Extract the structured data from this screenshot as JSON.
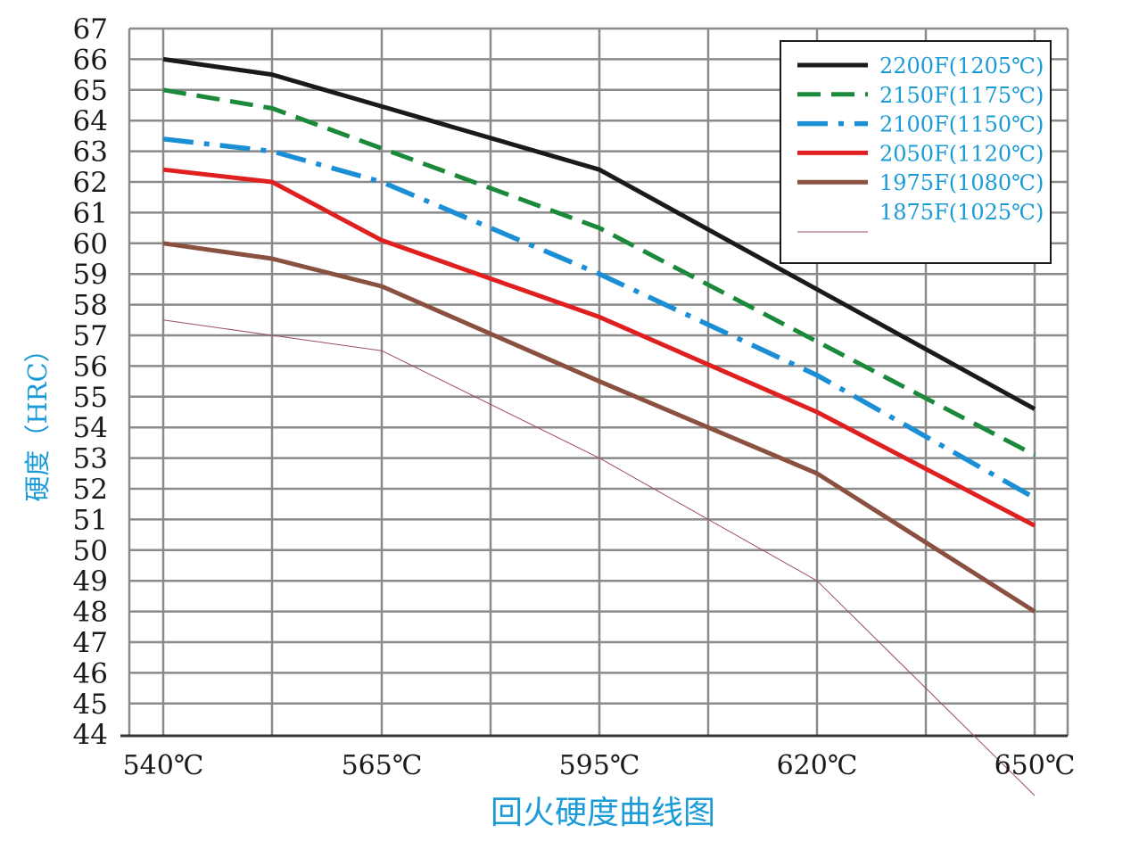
{
  "chart_data": {
    "type": "line",
    "title": "",
    "xlabel": "回火硬度曲线图",
    "ylabel": "硬度（HRC）",
    "x": [
      540,
      550,
      565,
      580,
      595,
      605,
      620,
      635,
      650
    ],
    "x_tick_labels": [
      "540℃",
      "565℃",
      "595℃",
      "620℃",
      "650℃"
    ],
    "x_tick_values": [
      540,
      565,
      595,
      620,
      650
    ],
    "ylim": [
      44,
      67
    ],
    "y_tick_labels": [
      "67",
      "66",
      "65",
      "64",
      "63",
      "62",
      "61",
      "60",
      "59",
      "58",
      "57",
      "56",
      "55",
      "54",
      "53",
      "52",
      "51",
      "50",
      "49",
      "48",
      "47",
      "46",
      "45",
      "44"
    ],
    "grid": true,
    "legend_position": "top-right",
    "series": [
      {
        "name": "2200F(1205℃)",
        "color": "#1a1a1a",
        "style": "solid",
        "points": [
          [
            540,
            66.0
          ],
          [
            550,
            65.5
          ],
          [
            595,
            62.4
          ],
          [
            650,
            54.6
          ]
        ]
      },
      {
        "name": "2150F(1175℃)",
        "color": "#1a8a3a",
        "style": "dashed",
        "points": [
          [
            540,
            65.0
          ],
          [
            550,
            64.4
          ],
          [
            595,
            60.5
          ],
          [
            650,
            53.1
          ]
        ]
      },
      {
        "name": "2100F(1150℃)",
        "color": "#1a8fd5",
        "style": "dashdot",
        "points": [
          [
            540,
            63.4
          ],
          [
            550,
            63.0
          ],
          [
            565,
            62.0
          ],
          [
            595,
            59.0
          ],
          [
            620,
            55.7
          ],
          [
            650,
            51.7
          ]
        ]
      },
      {
        "name": "2050F(1120℃)",
        "color": "#e02020",
        "style": "solid",
        "points": [
          [
            540,
            62.4
          ],
          [
            550,
            62.0
          ],
          [
            565,
            60.1
          ],
          [
            595,
            57.6
          ],
          [
            620,
            54.5
          ],
          [
            650,
            50.8
          ]
        ]
      },
      {
        "name": "1975F(1080℃)",
        "color": "#8a5040",
        "style": "solid",
        "points": [
          [
            540,
            60.0
          ],
          [
            550,
            59.5
          ],
          [
            565,
            58.6
          ],
          [
            595,
            55.5
          ],
          [
            620,
            52.5
          ],
          [
            650,
            48.0
          ]
        ]
      },
      {
        "name": "1875F(1025℃)",
        "color": "#9a4a70",
        "style": "thin",
        "points": [
          [
            540,
            57.5
          ],
          [
            550,
            57.0
          ],
          [
            565,
            56.5
          ],
          [
            595,
            53.0
          ],
          [
            620,
            49.0
          ],
          [
            635,
            45.5
          ],
          [
            650,
            42.0
          ]
        ]
      }
    ]
  }
}
